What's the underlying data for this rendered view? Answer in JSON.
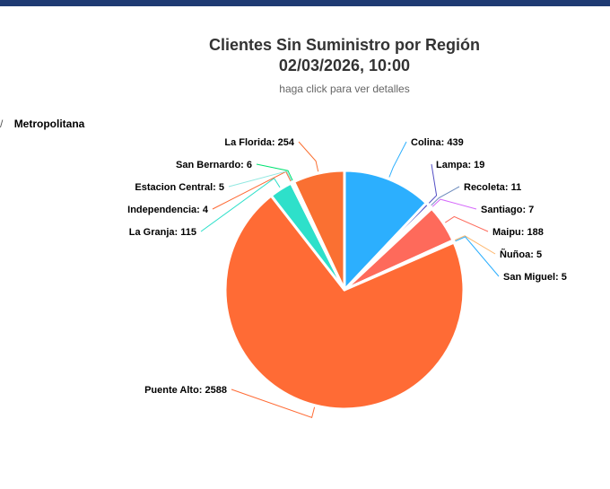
{
  "chart_data": {
    "type": "pie",
    "title_line1": "Clientes Sin Suministro por Región",
    "title_line2": "02/03/2026, 10:00",
    "subtitle": "haga click para ver detalles",
    "breadcrumb": {
      "separator": "/",
      "current": "Metropolitana"
    },
    "slices": [
      {
        "name": "Colina",
        "value": 439,
        "color": "#2caffe",
        "label": "Colina: 439"
      },
      {
        "name": "Lampa",
        "value": 19,
        "color": "#544fc5",
        "label": "Lampa: 19"
      },
      {
        "name": "Recoleta",
        "value": 11,
        "color": "#6b8abc",
        "label": "Recoleta: 11"
      },
      {
        "name": "Santiago",
        "value": 7,
        "color": "#d568fb",
        "label": "Santiago: 7"
      },
      {
        "name": "Maipu",
        "value": 188,
        "color": "#fe6a5b",
        "label": "Maipu: 188"
      },
      {
        "name": "Ñuñoa",
        "value": 5,
        "color": "#feb56a",
        "label": "Ñuñoa: 5"
      },
      {
        "name": "San Miguel",
        "value": 5,
        "color": "#2caffe",
        "label": "San Miguel: 5"
      },
      {
        "name": "Puente Alto",
        "value": 2588,
        "color": "#ff6b35",
        "label": "Puente Alto: 2588"
      },
      {
        "name": "La Granja",
        "value": 115,
        "color": "#2ee0ca",
        "label": "La Granja: 115"
      },
      {
        "name": "Independencia",
        "value": 4,
        "color": "#fe6a35",
        "label": "Independencia: 4"
      },
      {
        "name": "Estacion Central",
        "value": 5,
        "color": "#91e8e1",
        "label": "Estacion Central: 5"
      },
      {
        "name": "San Bernardo",
        "value": 6,
        "color": "#00e272",
        "label": "San Bernardo: 6"
      },
      {
        "name": "La Florida",
        "value": 254,
        "color": "#fa7032",
        "label": "La Florida: 254"
      }
    ]
  }
}
